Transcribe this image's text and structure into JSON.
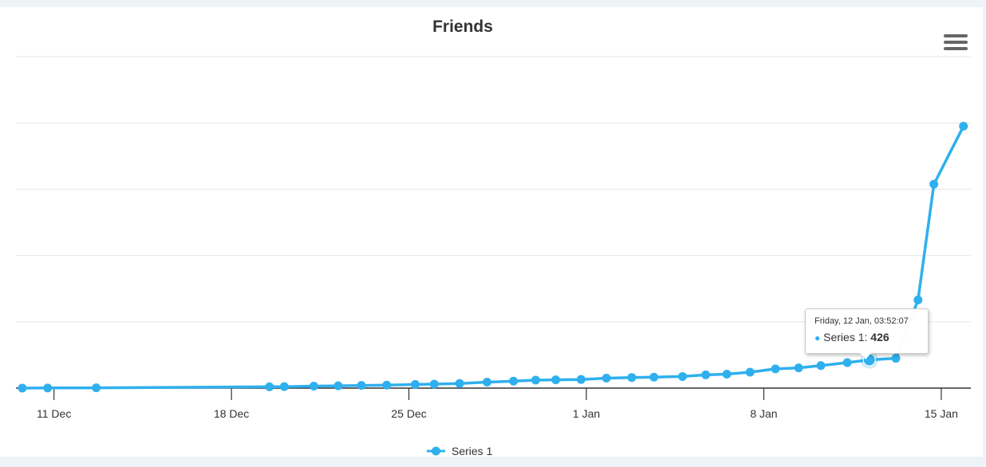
{
  "chart_data": {
    "type": "line",
    "title": "Friends",
    "xlabel": "",
    "ylabel": "",
    "x_axis": "datetime",
    "x_ticks": [
      "11 Dec",
      "18 Dec",
      "25 Dec",
      "1 Jan",
      "8 Jan",
      "15 Jan"
    ],
    "xlim": [
      "2017-12-09T12:00",
      "2018-01-16T04:00"
    ],
    "ylim": [
      0,
      5000
    ],
    "y_gridlines": [
      0,
      1000,
      2000,
      3000,
      4000,
      5000
    ],
    "grid": true,
    "legend_position": "bottom-center",
    "color": "#2fb0ee",
    "series": [
      {
        "name": "Series 1",
        "points": [
          {
            "x": "2017-12-09T18:00",
            "y": 0
          },
          {
            "x": "2017-12-10T18:00",
            "y": 2
          },
          {
            "x": "2017-12-12T16:00",
            "y": 4
          },
          {
            "x": "2017-12-19T12:00",
            "y": 20
          },
          {
            "x": "2017-12-20T02:00",
            "y": 22
          },
          {
            "x": "2017-12-21T06:00",
            "y": 30
          },
          {
            "x": "2017-12-22T05:00",
            "y": 35
          },
          {
            "x": "2017-12-23T03:00",
            "y": 40
          },
          {
            "x": "2017-12-24T03:00",
            "y": 45
          },
          {
            "x": "2017-12-25T06:00",
            "y": 55
          },
          {
            "x": "2017-12-26T00:00",
            "y": 60
          },
          {
            "x": "2017-12-27T00:00",
            "y": 70
          },
          {
            "x": "2017-12-28T02:00",
            "y": 90
          },
          {
            "x": "2017-12-29T03:00",
            "y": 105
          },
          {
            "x": "2017-12-30T00:00",
            "y": 120
          },
          {
            "x": "2017-12-30T19:00",
            "y": 125
          },
          {
            "x": "2017-12-31T19:00",
            "y": 130
          },
          {
            "x": "2018-01-01T19:00",
            "y": 150
          },
          {
            "x": "2018-01-02T19:00",
            "y": 160
          },
          {
            "x": "2018-01-03T16:00",
            "y": 165
          },
          {
            "x": "2018-01-04T19:00",
            "y": 175
          },
          {
            "x": "2018-01-05T17:00",
            "y": 200
          },
          {
            "x": "2018-01-06T13:00",
            "y": 210
          },
          {
            "x": "2018-01-07T11:00",
            "y": 240
          },
          {
            "x": "2018-01-08T11:00",
            "y": 290
          },
          {
            "x": "2018-01-09T09:00",
            "y": 305
          },
          {
            "x": "2018-01-10T06:00",
            "y": 340
          },
          {
            "x": "2018-01-11T07:00",
            "y": 385
          },
          {
            "x": "2018-01-12T03:52",
            "y": 426
          },
          {
            "x": "2018-01-13T05:00",
            "y": 450
          },
          {
            "x": "2018-01-14T02:00",
            "y": 1330
          },
          {
            "x": "2018-01-14T17:00",
            "y": 3075
          },
          {
            "x": "2018-01-15T21:00",
            "y": 3950
          }
        ]
      }
    ],
    "tooltip": {
      "date": "Friday, 12 Jan, 03:52:07",
      "series_label": "Series 1: ",
      "value": "426",
      "point_index": 28
    }
  },
  "menu": {
    "icon": "hamburger-menu-icon"
  }
}
